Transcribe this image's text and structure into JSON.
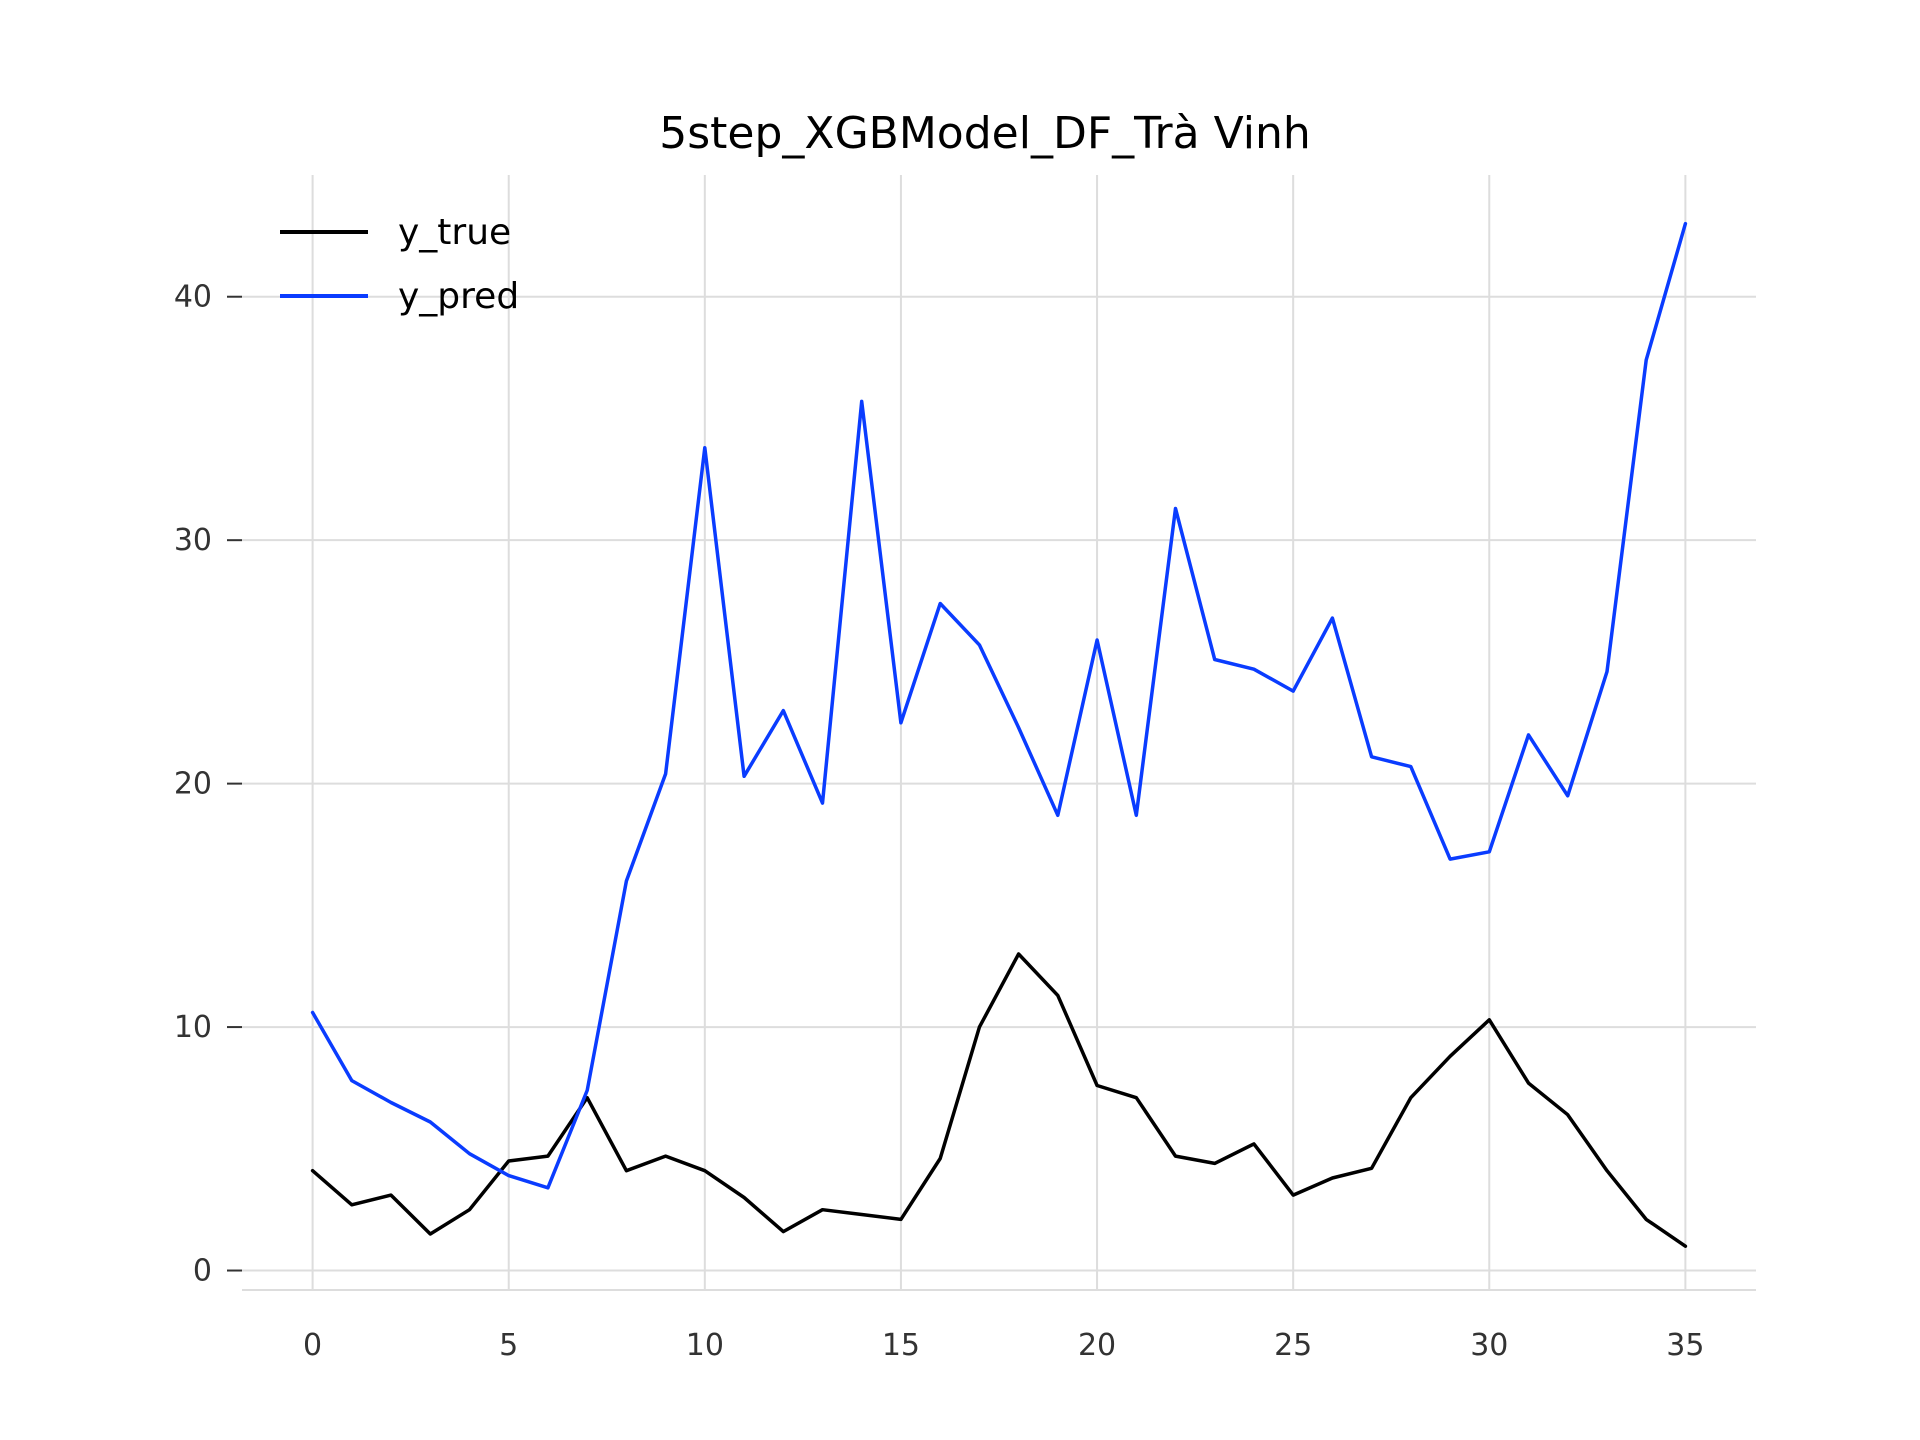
{
  "chart_data": {
    "type": "line",
    "title": "5step_XGBModel_DF_Trà Vinh",
    "xlabel": "",
    "ylabel": "",
    "xlim": [
      -1.8,
      36.8
    ],
    "ylim": [
      -0.8,
      45.0
    ],
    "xticks": [
      0,
      5,
      10,
      15,
      20,
      25,
      30,
      35
    ],
    "yticks": [
      0,
      10,
      20,
      30,
      40
    ],
    "grid": true,
    "legend_position": "upper-left",
    "x": [
      0,
      1,
      2,
      3,
      4,
      5,
      6,
      7,
      8,
      9,
      10,
      11,
      12,
      13,
      14,
      15,
      16,
      17,
      18,
      19,
      20,
      21,
      22,
      23,
      24,
      25,
      26,
      27,
      28,
      29,
      30,
      31,
      32,
      33,
      34,
      35
    ],
    "series": [
      {
        "name": "y_true",
        "color": "#000000",
        "values": [
          4.1,
          2.7,
          3.1,
          1.5,
          2.5,
          4.5,
          4.7,
          7.1,
          4.1,
          4.7,
          4.1,
          3.0,
          1.6,
          2.5,
          2.3,
          2.1,
          4.6,
          10.0,
          13.0,
          11.3,
          7.6,
          7.1,
          4.7,
          4.4,
          5.2,
          3.1,
          3.8,
          4.2,
          7.1,
          8.8,
          10.3,
          7.7,
          6.4,
          4.1,
          2.1,
          1.0
        ]
      },
      {
        "name": "y_pred",
        "color": "#0a3cff",
        "values": [
          10.6,
          7.8,
          6.9,
          6.1,
          4.8,
          3.9,
          3.4,
          7.4,
          16.0,
          20.4,
          33.8,
          20.3,
          23.0,
          19.2,
          35.7,
          22.5,
          27.4,
          25.7,
          22.3,
          18.7,
          25.9,
          18.7,
          31.3,
          25.1,
          24.7,
          23.8,
          26.8,
          21.1,
          20.7,
          16.9,
          17.2,
          22.0,
          19.5,
          24.6,
          37.4,
          43.0
        ]
      }
    ]
  }
}
